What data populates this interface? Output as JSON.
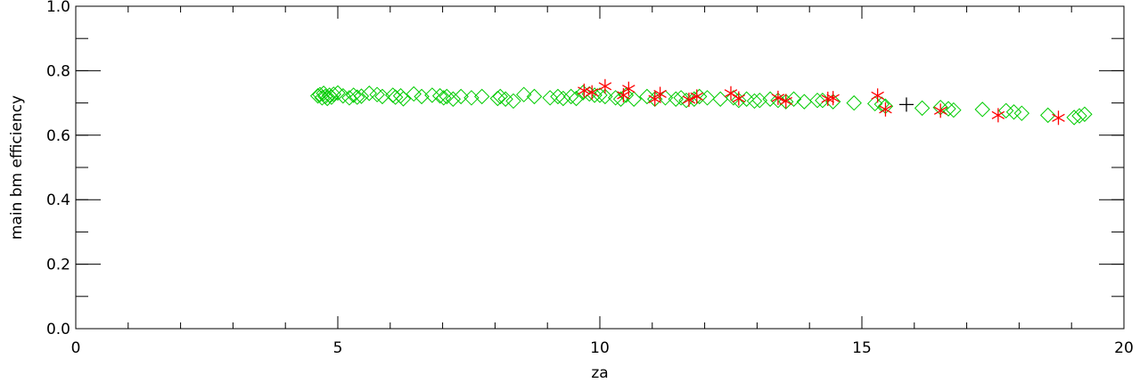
{
  "chart_data": {
    "type": "scatter",
    "xlabel": "za",
    "ylabel": "main bm efficiency",
    "xlim": [
      0,
      20
    ],
    "ylim": [
      0.0,
      1.0
    ],
    "x_ticks": [
      0,
      5,
      10,
      15,
      20
    ],
    "x_tick_labels": [
      "0",
      "5",
      "10",
      "15",
      "20"
    ],
    "y_ticks": [
      0.0,
      0.2,
      0.4,
      0.6,
      0.8,
      1.0
    ],
    "y_tick_labels": [
      "0.0",
      "0.2",
      "0.4",
      "0.6",
      "0.8",
      "1.0"
    ],
    "x_minor_step": 1,
    "y_minor_step": 0.1,
    "grid": false,
    "series": [
      {
        "marker": "diamond",
        "color": "#00cc00",
        "points": [
          [
            4.62,
            0.722
          ],
          [
            4.66,
            0.726
          ],
          [
            4.7,
            0.716
          ],
          [
            4.73,
            0.73
          ],
          [
            4.76,
            0.72
          ],
          [
            4.8,
            0.714
          ],
          [
            4.84,
            0.724
          ],
          [
            4.88,
            0.718
          ],
          [
            4.92,
            0.727
          ],
          [
            5.0,
            0.731
          ],
          [
            5.1,
            0.722
          ],
          [
            5.22,
            0.716
          ],
          [
            5.3,
            0.724
          ],
          [
            5.37,
            0.718
          ],
          [
            5.45,
            0.721
          ],
          [
            5.6,
            0.73
          ],
          [
            5.75,
            0.726
          ],
          [
            5.85,
            0.72
          ],
          [
            6.05,
            0.724
          ],
          [
            6.1,
            0.718
          ],
          [
            6.2,
            0.722
          ],
          [
            6.25,
            0.713
          ],
          [
            6.45,
            0.728
          ],
          [
            6.6,
            0.72
          ],
          [
            6.8,
            0.724
          ],
          [
            6.95,
            0.722
          ],
          [
            7.02,
            0.716
          ],
          [
            7.08,
            0.72
          ],
          [
            7.2,
            0.712
          ],
          [
            7.35,
            0.72
          ],
          [
            7.55,
            0.716
          ],
          [
            7.75,
            0.72
          ],
          [
            8.05,
            0.714
          ],
          [
            8.1,
            0.72
          ],
          [
            8.2,
            0.712
          ],
          [
            8.35,
            0.706
          ],
          [
            8.55,
            0.726
          ],
          [
            8.75,
            0.72
          ],
          [
            9.05,
            0.716
          ],
          [
            9.2,
            0.72
          ],
          [
            9.3,
            0.714
          ],
          [
            9.45,
            0.72
          ],
          [
            9.55,
            0.714
          ],
          [
            9.68,
            0.732
          ],
          [
            9.8,
            0.728
          ],
          [
            9.9,
            0.724
          ],
          [
            10.0,
            0.724
          ],
          [
            10.1,
            0.72
          ],
          [
            10.3,
            0.716
          ],
          [
            10.4,
            0.712
          ],
          [
            10.5,
            0.724
          ],
          [
            10.65,
            0.712
          ],
          [
            10.9,
            0.72
          ],
          [
            11.05,
            0.712
          ],
          [
            11.25,
            0.716
          ],
          [
            11.45,
            0.712
          ],
          [
            11.55,
            0.716
          ],
          [
            11.65,
            0.708
          ],
          [
            11.8,
            0.712
          ],
          [
            11.9,
            0.72
          ],
          [
            12.05,
            0.716
          ],
          [
            12.3,
            0.712
          ],
          [
            12.55,
            0.716
          ],
          [
            12.65,
            0.708
          ],
          [
            12.8,
            0.712
          ],
          [
            12.95,
            0.706
          ],
          [
            13.05,
            0.708
          ],
          [
            13.25,
            0.712
          ],
          [
            13.4,
            0.708
          ],
          [
            13.55,
            0.704
          ],
          [
            13.7,
            0.712
          ],
          [
            13.9,
            0.704
          ],
          [
            14.15,
            0.708
          ],
          [
            14.25,
            0.708
          ],
          [
            14.45,
            0.704
          ],
          [
            14.85,
            0.7
          ],
          [
            15.25,
            0.698
          ],
          [
            15.38,
            0.696
          ],
          [
            15.45,
            0.69
          ],
          [
            16.15,
            0.684
          ],
          [
            16.5,
            0.686
          ],
          [
            16.65,
            0.682
          ],
          [
            16.75,
            0.678
          ],
          [
            17.3,
            0.68
          ],
          [
            17.75,
            0.676
          ],
          [
            17.9,
            0.672
          ],
          [
            18.05,
            0.668
          ],
          [
            18.55,
            0.662
          ],
          [
            19.05,
            0.655
          ],
          [
            19.15,
            0.66
          ],
          [
            19.25,
            0.665
          ]
        ]
      },
      {
        "marker": "asterisk",
        "color": "#ff0000",
        "points": [
          [
            9.7,
            0.738
          ],
          [
            9.85,
            0.733
          ],
          [
            10.1,
            0.752
          ],
          [
            10.45,
            0.724
          ],
          [
            10.55,
            0.744
          ],
          [
            11.05,
            0.712
          ],
          [
            11.15,
            0.728
          ],
          [
            11.7,
            0.71
          ],
          [
            11.85,
            0.72
          ],
          [
            12.5,
            0.73
          ],
          [
            12.65,
            0.714
          ],
          [
            13.4,
            0.716
          ],
          [
            13.55,
            0.706
          ],
          [
            14.35,
            0.713
          ],
          [
            14.45,
            0.715
          ],
          [
            15.3,
            0.723
          ],
          [
            15.45,
            0.68
          ],
          [
            16.5,
            0.676
          ],
          [
            17.6,
            0.662
          ],
          [
            18.75,
            0.654
          ]
        ]
      },
      {
        "marker": "plus",
        "color": "#000000",
        "points": [
          [
            15.85,
            0.695
          ]
        ]
      }
    ]
  }
}
